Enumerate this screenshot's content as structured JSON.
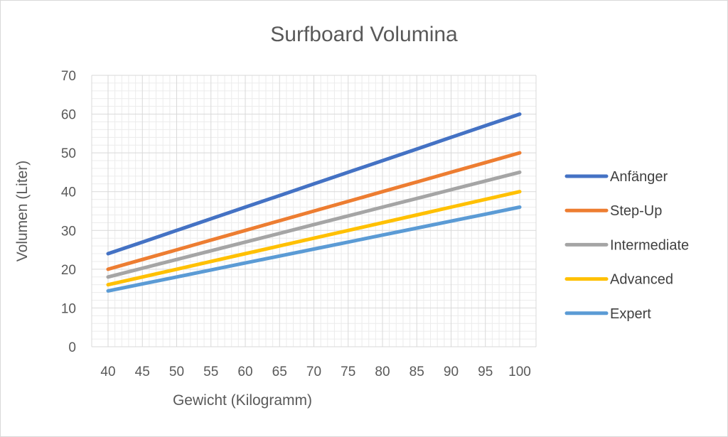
{
  "chart_data": {
    "type": "line",
    "title": "Surfboard Volumina",
    "xlabel": "Gewicht (Kilogramm)",
    "ylabel": "Volumen (Liter)",
    "x": [
      40,
      45,
      50,
      55,
      60,
      65,
      70,
      75,
      80,
      85,
      90,
      95,
      100
    ],
    "xlim": [
      40,
      100
    ],
    "ylim": [
      0,
      70
    ],
    "yticks": [
      0,
      10,
      20,
      30,
      40,
      50,
      60,
      70
    ],
    "grid": true,
    "legend_position": "right",
    "series": [
      {
        "name": "Anfänger",
        "color": "#4472C4",
        "values": [
          24,
          27,
          30,
          33,
          36,
          39,
          42,
          45,
          48,
          51,
          54,
          57,
          60
        ]
      },
      {
        "name": "Step-Up",
        "color": "#ED7D31",
        "values": [
          20,
          22.5,
          25,
          27.5,
          30,
          32.5,
          35,
          37.5,
          40,
          42.5,
          45,
          47.5,
          50
        ]
      },
      {
        "name": "Intermediate",
        "color": "#A5A5A5",
        "values": [
          18,
          20.25,
          22.5,
          24.75,
          27,
          29.25,
          31.5,
          33.75,
          36,
          38.25,
          40.5,
          42.75,
          45
        ]
      },
      {
        "name": "Advanced",
        "color": "#FFC000",
        "values": [
          16,
          18,
          20,
          22,
          24,
          26,
          28,
          30,
          32,
          34,
          36,
          38,
          40
        ]
      },
      {
        "name": "Expert",
        "color": "#5B9BD5",
        "values": [
          14.4,
          16.2,
          18,
          19.8,
          21.6,
          23.4,
          25.2,
          27,
          28.8,
          30.6,
          32.4,
          34.2,
          36
        ]
      }
    ]
  }
}
